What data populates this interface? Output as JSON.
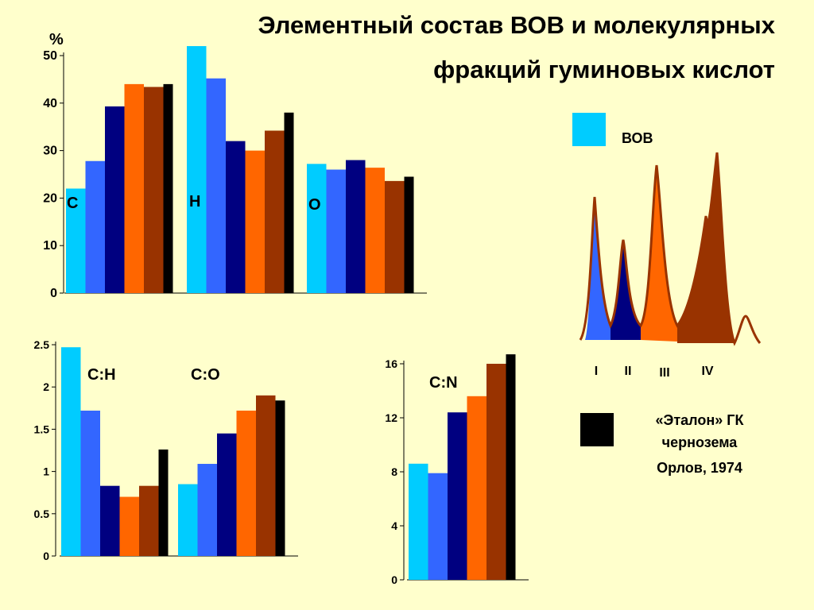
{
  "title_line1": "Элементный состав ВОВ и молекулярных",
  "title_line2": "фракций гуминовых кислот",
  "colors": [
    "#00CCFF",
    "#3366FF",
    "#000080",
    "#FF6600",
    "#993300",
    "#000000"
  ],
  "legend": {
    "vov_label": "ВОВ",
    "vov_color": "#00CCFF",
    "standard_line1": "«Эталон»  ГК",
    "standard_line2": "чернозема",
    "standard_line3": "Орлов, 1974",
    "standard_color": "#000000"
  },
  "fractions": {
    "labels": [
      "I",
      "II",
      "III",
      "IV"
    ],
    "colors": [
      "#3366FF",
      "#000080",
      "#FF6600",
      "#993300"
    ]
  },
  "chart_data": [
    {
      "type": "bar",
      "ylabel": "%",
      "ylim": [
        0,
        50
      ],
      "yticks": [
        "0",
        "10",
        "20",
        "30",
        "40",
        "50"
      ],
      "groups": [
        {
          "label": "C",
          "values": [
            22,
            27.8,
            39.3,
            44,
            43.4,
            44
          ]
        },
        {
          "label": "H",
          "values": [
            52,
            45.2,
            32,
            30,
            34.2,
            38
          ]
        },
        {
          "label": "O",
          "values": [
            27.2,
            26,
            28,
            26.4,
            23.6,
            24.5
          ]
        }
      ]
    },
    {
      "type": "bar",
      "ylim": [
        0,
        2.5
      ],
      "yticks": [
        "0",
        "0.5",
        "1",
        "1.5",
        "2",
        "2.5"
      ],
      "groups": [
        {
          "label": "C:H",
          "values": [
            2.47,
            1.72,
            0.83,
            0.7,
            0.83,
            1.26
          ]
        },
        {
          "label": "C:O",
          "values": [
            0.85,
            1.09,
            1.45,
            1.72,
            1.9,
            1.84
          ]
        }
      ]
    },
    {
      "type": "bar",
      "ylim": [
        0,
        16
      ],
      "yticks": [
        "0",
        "4",
        "8",
        "12",
        "16"
      ],
      "groups": [
        {
          "label": "C:N",
          "values": [
            8.6,
            7.9,
            12.4,
            13.6,
            16,
            16.7
          ]
        }
      ]
    }
  ]
}
